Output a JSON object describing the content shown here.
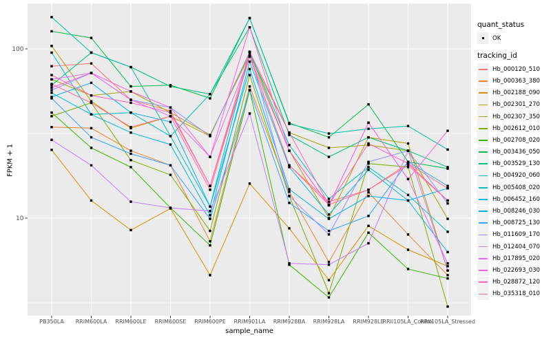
{
  "legend": {
    "quant": {
      "title": "quant_status",
      "ok_label": "OK",
      "marker": "black-square-point"
    },
    "tracking": {
      "title": "tracking_id"
    }
  },
  "style": {
    "panel_bg": "#EBEBEB",
    "grid_color": "#FFFFFF",
    "tick_label_color": "#4D4D4D",
    "tick_mark_color": "#333333",
    "point_color": "#000000",
    "legend_key_bg": "#F2F2F2"
  },
  "chart_data": {
    "type": "line",
    "title": "",
    "xlabel": "sample_name",
    "ylabel": "FPKM + 1",
    "y_scale": "log10",
    "ylim": [
      2.6,
      180
    ],
    "y_major_ticks": [
      100,
      10
    ],
    "y_tick_labels": [
      "100",
      "10"
    ],
    "y_minor_gridlines": [
      31.62,
      3.162
    ],
    "grid": true,
    "legend_position": "right",
    "point_marker": "black-square",
    "categories": [
      "PB350LA",
      "RRIM600LA",
      "RRIM600LE",
      "RRIM600SE",
      "RRIM600PE",
      "RRIM901LA",
      "RRIM928BA",
      "RRIM928LA",
      "RRIM928LE",
      "RRII105LA_Control",
      "RRII105LA_Stressed"
    ],
    "series": [
      {
        "name": "Hb_000120_510",
        "color": "#F8766D",
        "values": [
          79,
          82,
          50,
          43,
          15.5,
          90,
          20.5,
          12.5,
          14.7,
          21,
          15
        ]
      },
      {
        "name": "Hb_000363_380",
        "color": "#EA8331",
        "values": [
          34.5,
          34,
          25,
          20.5,
          7.3,
          60,
          14.3,
          5.5,
          14.2,
          8,
          4.6
        ]
      },
      {
        "name": "Hb_002188_090",
        "color": "#D89000",
        "values": [
          25.3,
          12.7,
          8.5,
          11.4,
          4.6,
          16,
          8.7,
          4.3,
          9,
          6.5,
          5.2
        ]
      },
      {
        "name": "Hb_002301_270",
        "color": "#C09B00",
        "values": [
          104,
          49,
          34,
          40,
          30.5,
          95,
          25,
          10,
          30,
          27.6,
          4.9
        ]
      },
      {
        "name": "Hb_002307_350",
        "color": "#A3A500",
        "values": [
          66,
          53,
          56,
          42,
          31,
          92,
          32,
          26,
          27,
          25,
          9.9
        ]
      },
      {
        "name": "Hb_002612_010",
        "color": "#7CAE00",
        "values": [
          40,
          48,
          22,
          18,
          8.4,
          70,
          13.5,
          3.6,
          21,
          20,
          3.0
        ]
      },
      {
        "name": "Hb_002708_020",
        "color": "#39B600",
        "values": [
          42,
          26,
          20,
          11.5,
          6.9,
          57,
          5.3,
          3.4,
          8.2,
          5,
          4.4
        ]
      },
      {
        "name": "Hb_003436_050",
        "color": "#00BB4E",
        "values": [
          127,
          116,
          60,
          61,
          51,
          152,
          36.5,
          30,
          47,
          21.5,
          19.6
        ]
      },
      {
        "name": "Hb_003529_130",
        "color": "#00BF7D",
        "values": [
          61,
          95,
          78,
          60,
          54,
          134,
          31,
          23,
          30,
          25,
          20
        ]
      },
      {
        "name": "Hb_004920_060",
        "color": "#00C1A3",
        "values": [
          154,
          95,
          78,
          30.5,
          54,
          152,
          36,
          31.6,
          33.7,
          35,
          25.4
        ]
      },
      {
        "name": "Hb_005408_020",
        "color": "#00BFC4",
        "values": [
          95,
          41,
          42,
          30.5,
          11.7,
          96,
          27,
          13,
          20,
          13.7,
          8.3
        ]
      },
      {
        "name": "Hb_006452_160",
        "color": "#00BAE0",
        "values": [
          55,
          41,
          32,
          27.2,
          10.4,
          84,
          20,
          10.5,
          19.3,
          12.7,
          6.3
        ]
      },
      {
        "name": "Hb_008246_030",
        "color": "#00B0F6",
        "values": [
          52,
          63,
          42,
          37,
          11.7,
          76,
          14.8,
          9.9,
          13.5,
          12.7,
          15
        ]
      },
      {
        "name": "Hb_008725_130",
        "color": "#35A2FF",
        "values": [
          51,
          30,
          24,
          20.5,
          9.9,
          57,
          12.3,
          8.4,
          10.3,
          21.5,
          15.5
        ]
      },
      {
        "name": "Hb_011609_170",
        "color": "#9590FF",
        "values": [
          57,
          72,
          50,
          45,
          30.5,
          96,
          13.5,
          8,
          21.5,
          25,
          12.2
        ]
      },
      {
        "name": "Hb_012404_070",
        "color": "#C77CFF",
        "values": [
          29,
          20.5,
          12.5,
          11.5,
          11,
          41.5,
          5.4,
          5.3,
          7.1,
          25,
          4.9
        ]
      },
      {
        "name": "Hb_017895_020",
        "color": "#E76BF3",
        "values": [
          66,
          72,
          50,
          40,
          23,
          90,
          25,
          11.9,
          36.6,
          17,
          5.4
        ]
      },
      {
        "name": "Hb_022693_030",
        "color": "#FA62DB",
        "values": [
          59,
          72,
          56,
          45,
          23,
          134,
          25,
          11.9,
          36.6,
          17,
          32.8
        ]
      },
      {
        "name": "Hb_028872_120",
        "color": "#FF62BC",
        "values": [
          70,
          53,
          48,
          42,
          15.5,
          96,
          32,
          12,
          27.6,
          21,
          12.7
        ]
      },
      {
        "name": "Hb_035318_010",
        "color": "#FF6A98",
        "values": [
          62,
          48,
          34.5,
          40,
          14.7,
          90,
          20.5,
          12,
          14.7,
          20.5,
          12.7
        ]
      }
    ]
  }
}
